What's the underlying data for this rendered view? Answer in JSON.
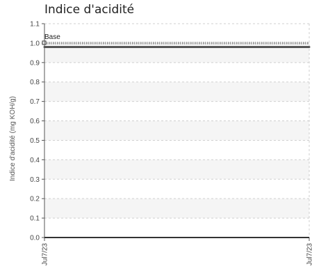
{
  "chart_data": {
    "type": "line",
    "title": "Indice d'acidité",
    "ylabel": "Indice d'acidité (mg KOH/g)",
    "xlabel": "",
    "ylim": [
      0,
      1.1
    ],
    "y_ticks": [
      "0.0",
      "0.1",
      "0.2",
      "0.3",
      "0.4",
      "0.5",
      "0.6",
      "0.7",
      "0.8",
      "0.9",
      "1.0",
      "1.1"
    ],
    "x_ticks": [
      "Jul7/23",
      "Jul7/23"
    ],
    "grid": true,
    "series": [
      {
        "name": "",
        "values": [
          0.98,
          0.98
        ],
        "color": "#555555"
      }
    ],
    "reference_lines": [
      {
        "label": "Base",
        "value": 1.0,
        "color": "#555555",
        "style": "dotted"
      }
    ],
    "band_color": "#f5f5f5"
  }
}
